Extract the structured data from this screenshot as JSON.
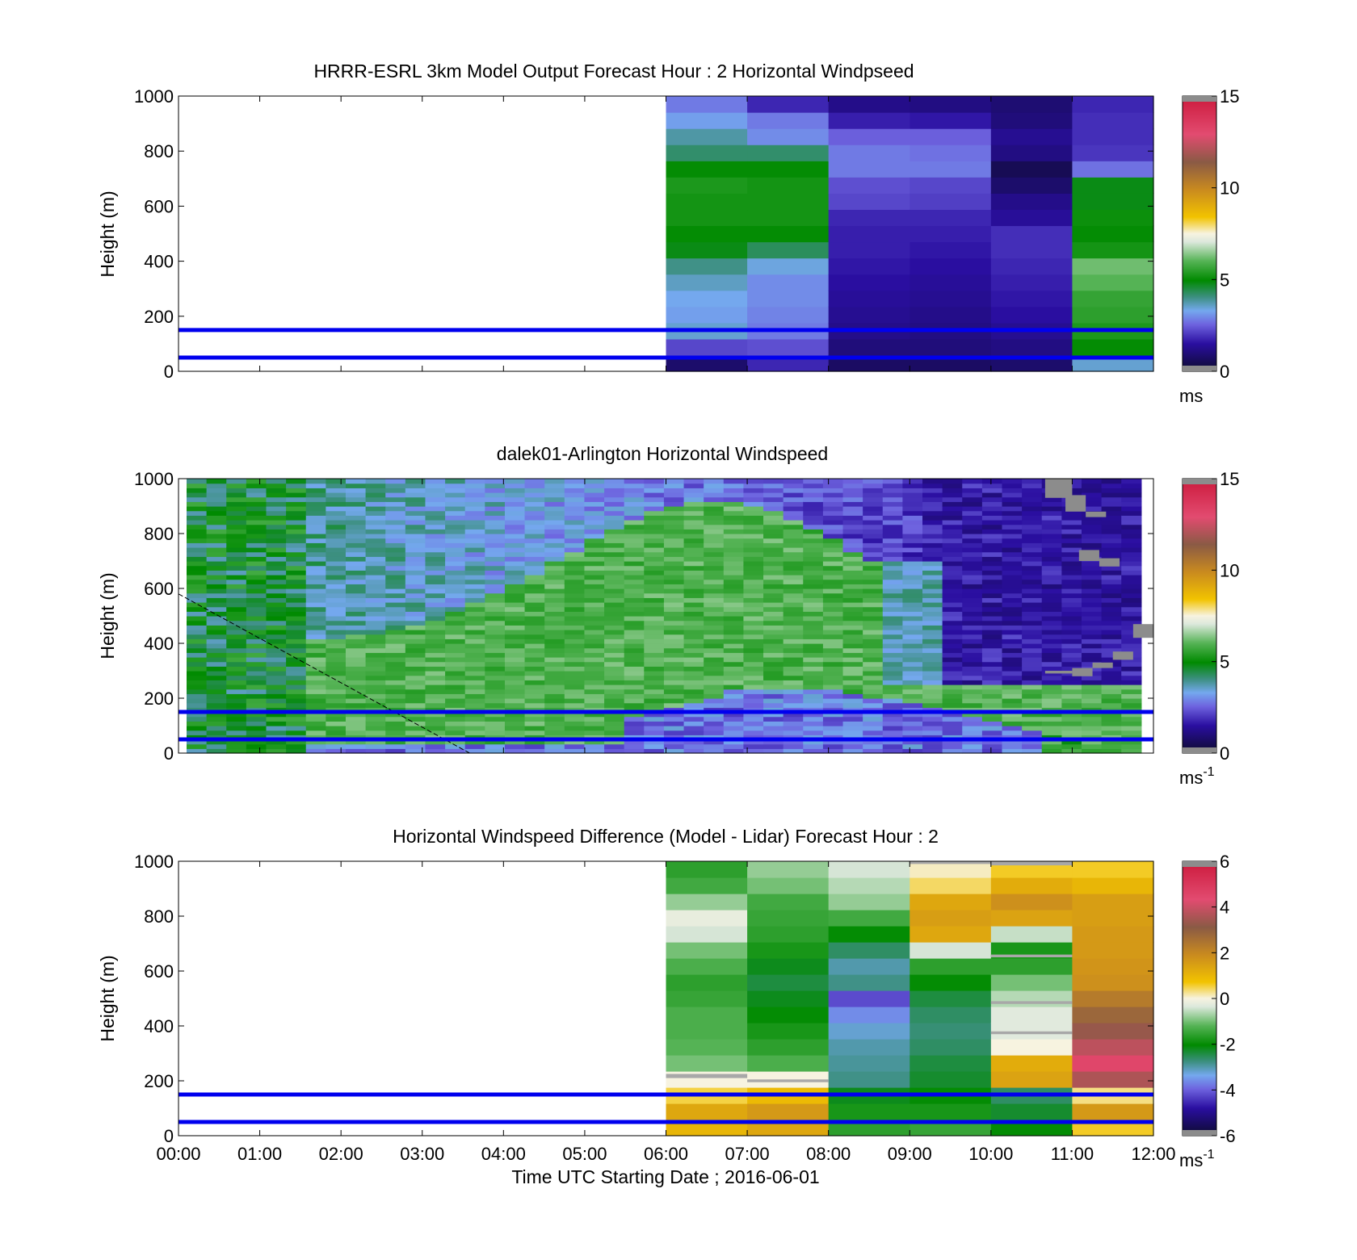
{
  "figure": {
    "xlabel": "Time UTC  Starting Date ; 2016-06-01",
    "x_ticks": [
      "00:00",
      "01:00",
      "02:00",
      "03:00",
      "04:00",
      "05:00",
      "06:00",
      "07:00",
      "08:00",
      "09:00",
      "10:00",
      "11:00",
      "12:00"
    ]
  },
  "chart_data": [
    {
      "type": "heatmap",
      "title": "HRRR-ESRL 3km Model Output   Forecast Hour : 2 Horizontal Windpseed",
      "ylabel": "Height (m)",
      "y_ticks": [
        "0",
        "200",
        "400",
        "600",
        "800",
        "1000"
      ],
      "ylim": [
        0,
        1000
      ],
      "xlim": [
        "00:00",
        "12:00"
      ],
      "colorbar": {
        "ticks": [
          "0",
          "5",
          "10",
          "15"
        ],
        "min": 0,
        "max": 15,
        "unit": "ms",
        "unit_sup": "",
        "colormap": "windspeed"
      },
      "reference_lines_m": [
        50,
        150
      ],
      "data_start_hour": 6,
      "hour_columns": [
        [
          0.8,
          2.2,
          3.5,
          3.2,
          3.3,
          3.6,
          4.0,
          4.8,
          5.0,
          5.2,
          5.2,
          5.3,
          5.0,
          4.2,
          3.8,
          3.2,
          2.8
        ],
        [
          1.8,
          2.3,
          2.8,
          2.9,
          3.0,
          3.0,
          3.4,
          4.3,
          5.0,
          5.2,
          5.2,
          5.2,
          5.0,
          4.2,
          3.0,
          2.8,
          1.8
        ],
        [
          0.7,
          1.0,
          1.2,
          1.3,
          1.4,
          1.5,
          1.6,
          1.7,
          1.7,
          1.8,
          2.2,
          2.3,
          2.8,
          2.8,
          2.5,
          1.7,
          1.2
        ],
        [
          0.7,
          1.0,
          1.1,
          1.2,
          1.3,
          1.4,
          1.5,
          1.6,
          1.7,
          1.8,
          2.1,
          2.2,
          2.8,
          2.7,
          2.5,
          1.6,
          1.1
        ],
        [
          0.8,
          1.1,
          1.3,
          1.5,
          1.6,
          1.7,
          1.8,
          1.9,
          1.9,
          1.4,
          1.2,
          0.8,
          0.5,
          1.1,
          1.3,
          1.0,
          0.9
        ],
        [
          3.5,
          5.0,
          5.3,
          5.5,
          5.6,
          6.0,
          6.2,
          5.2,
          5.0,
          5.1,
          4.8,
          4.8,
          2.7,
          2.0,
          1.9,
          1.9,
          1.8
        ]
      ]
    },
    {
      "type": "heatmap",
      "title": "dalek01-Arlington  Horizontal Windspeed",
      "ylabel": "Height (m)",
      "y_ticks": [
        "0",
        "200",
        "400",
        "600",
        "800",
        "1000"
      ],
      "ylim": [
        0,
        1000
      ],
      "xlim": [
        "00:00",
        "12:00"
      ],
      "colorbar": {
        "ticks": [
          "0",
          "5",
          "10",
          "15"
        ],
        "min": 0,
        "max": 15,
        "unit": "ms",
        "unit_sup": "-1",
        "colormap": "windspeed"
      },
      "reference_lines_m": [
        50,
        150
      ],
      "data_hours": [
        0.1,
        11.85
      ],
      "dashed_line": {
        "start": [
          "00:00",
          580
        ],
        "end": [
          "03:35",
          0
        ]
      },
      "gray_patches": [
        [
          "10:40",
          "11:00",
          930,
          1000
        ],
        [
          "10:55",
          "11:10",
          880,
          940
        ],
        [
          "11:10",
          "11:25",
          860,
          880
        ],
        [
          "11:05",
          "11:20",
          700,
          740
        ],
        [
          "11:20",
          "11:35",
          680,
          710
        ],
        [
          "10:40",
          "11:00",
          290,
          300
        ],
        [
          "11:00",
          "11:15",
          280,
          310
        ],
        [
          "11:15",
          "11:30",
          310,
          330
        ],
        [
          "11:30",
          "11:45",
          340,
          370
        ],
        [
          "11:45",
          "12:00",
          420,
          470
        ]
      ]
    },
    {
      "type": "heatmap",
      "title": "Horizontal Windspeed Difference (Model - Lidar) Forecast Hour : 2",
      "ylabel": "Height (m)",
      "y_ticks": [
        "0",
        "200",
        "400",
        "600",
        "800",
        "1000"
      ],
      "ylim": [
        0,
        1000
      ],
      "xlim": [
        "00:00",
        "12:00"
      ],
      "colorbar": {
        "ticks": [
          "-6",
          "-4",
          "-2",
          "0",
          "2",
          "4",
          "6"
        ],
        "min": -6,
        "max": 6,
        "unit": "ms",
        "unit_sup": "-1",
        "colormap": "difference"
      },
      "reference_lines_m": [
        50,
        150
      ],
      "data_start_hour": 6,
      "hour_columns": [
        [
          1.0,
          1.3,
          0.5,
          0.0,
          -1.0,
          -1.2,
          -1.3,
          -1.3,
          -1.5,
          -1.6,
          -1.3,
          -1.0,
          -0.4,
          -0.2,
          -0.8,
          -1.4,
          -1.6
        ],
        [
          1.3,
          1.6,
          0.9,
          0.0,
          -1.3,
          -1.6,
          -1.8,
          -2.0,
          -2.2,
          -2.4,
          -2.2,
          -1.8,
          -1.6,
          -1.5,
          -1.4,
          -1.0,
          -0.8
        ],
        [
          -1.6,
          -1.8,
          -2.2,
          -2.8,
          -2.9,
          -3.0,
          -3.2,
          -3.6,
          -4.2,
          -2.8,
          -3.0,
          -2.6,
          -2.0,
          -1.4,
          -0.8,
          -0.6,
          -0.4
        ],
        [
          -1.5,
          -1.8,
          -2.0,
          -2.3,
          -2.4,
          -2.6,
          -2.7,
          -2.6,
          -2.4,
          -2.0,
          -1.6,
          -0.4,
          1.3,
          1.5,
          1.3,
          0.4,
          0.1
        ],
        [
          -2.0,
          -2.3,
          -2.6,
          1.4,
          1.2,
          0.0,
          -0.3,
          -0.3,
          -0.6,
          -1.0,
          -1.6,
          -1.8,
          -0.5,
          1.4,
          1.8,
          1.2,
          0.6
        ],
        [
          0.6,
          1.6,
          0.3,
          3.6,
          4.5,
          3.8,
          3.3,
          2.8,
          2.3,
          1.8,
          1.7,
          1.6,
          1.6,
          1.5,
          1.5,
          1.0,
          0.6
        ]
      ],
      "gray_bands": [
        [
          "06:00",
          "07:00",
          210,
          225
        ],
        [
          "07:00",
          "08:00",
          195,
          205
        ],
        [
          "09:00",
          "10:00",
          990,
          1000
        ],
        [
          "10:00",
          "11:00",
          985,
          1000
        ],
        [
          "10:00",
          "11:00",
          650,
          660
        ],
        [
          "10:00",
          "11:00",
          480,
          490
        ],
        [
          "10:00",
          "11:00",
          370,
          380
        ]
      ]
    }
  ]
}
